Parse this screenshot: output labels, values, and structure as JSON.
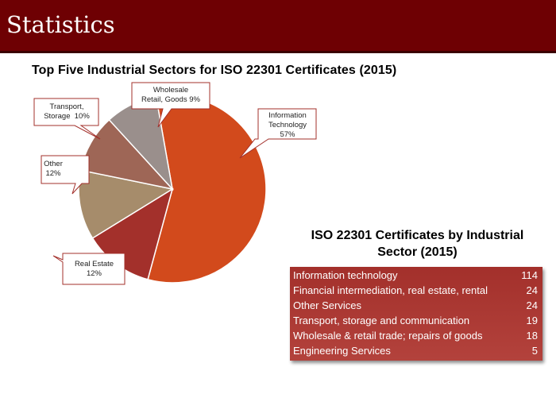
{
  "header": {
    "title": "Statistics"
  },
  "chart_data": [
    {
      "type": "pie",
      "title": "Top Five Industrial Sectors for ISO 22301 Certificates (2015)",
      "slices": [
        {
          "label": "Information Technology",
          "value": 57,
          "display": "57%",
          "color": "#d24a1c"
        },
        {
          "label": "Real Estate",
          "value": 12,
          "display": "12%",
          "color": "#a3302b"
        },
        {
          "label": "Other",
          "value": 12,
          "display": "12%",
          "color": "#a68c6b"
        },
        {
          "label": "Transport, Storage",
          "value": 10,
          "display": "10%",
          "color": "#9e6656"
        },
        {
          "label": "Wholesale Retail, Goods",
          "value": 9,
          "display": "9%",
          "color": "#9a8f8c"
        }
      ],
      "callouts": {
        "info": [
          "Information",
          "Technology",
          "57%"
        ],
        "realestate": [
          "Real Estate",
          "12%"
        ],
        "other": [
          "Other",
          "12%"
        ],
        "transport": [
          "Transport,",
          "Storage  10%"
        ],
        "wholesale": [
          "Wholesale",
          "Retail, Goods 9%"
        ]
      }
    },
    {
      "type": "table",
      "title": "ISO 22301 Certificates by Industrial Sector (2015)",
      "title_lines": [
        "ISO 22301 Certificates by Industrial",
        "Sector (2015)"
      ],
      "rows": [
        {
          "label": "Information technology",
          "value": "114"
        },
        {
          "label": "Financial intermediation, real estate, rental",
          "value": "24"
        },
        {
          "label": "Other Services",
          "value": "24"
        },
        {
          "label": "Transport, storage and communication",
          "value": "19"
        },
        {
          "label": "Wholesale & retail trade; repairs of goods",
          "value": "18"
        },
        {
          "label": "Engineering Services",
          "value": "5"
        }
      ]
    }
  ]
}
